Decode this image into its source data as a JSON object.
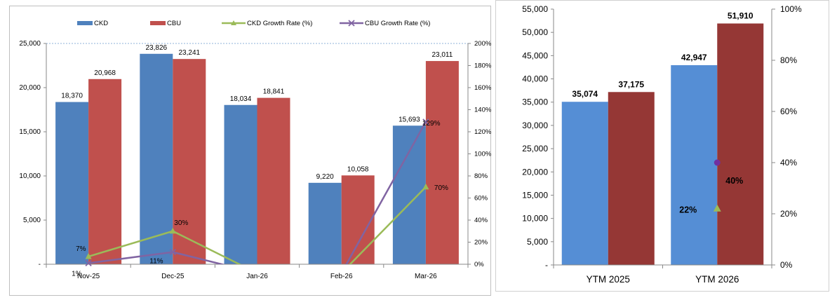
{
  "chart_data": [
    {
      "type": "bar",
      "title": "",
      "categories": [
        "Nov-25",
        "Dec-25",
        "Jan-26",
        "Feb-26",
        "Mar-26"
      ],
      "series": [
        {
          "name": "CKD",
          "type": "bar",
          "values": [
            18370,
            23826,
            18034,
            9220,
            15693
          ],
          "labels": [
            "18,370",
            "23,826",
            "18,034",
            "9,220",
            "15,693"
          ],
          "color": "#4f81bd"
        },
        {
          "name": "CBU",
          "type": "bar",
          "values": [
            20968,
            23241,
            18841,
            10058,
            23011
          ],
          "labels": [
            "20,968",
            "23,241",
            "18,841",
            "10,058",
            "23,011"
          ],
          "color": "#c0504d"
        },
        {
          "name": "CKD Growth Rate (%)",
          "type": "line",
          "axis": "right",
          "values": [
            7,
            30,
            -8,
            -8,
            70
          ],
          "labels": [
            "7%",
            "30%",
            "",
            "",
            "70%"
          ],
          "color": "#9bbb59"
        },
        {
          "name": "CBU Growth Rate (%)",
          "type": "line",
          "axis": "right",
          "values": [
            1,
            11,
            -8,
            -8,
            129
          ],
          "labels": [
            "1%",
            "11%",
            "",
            "",
            "129%"
          ],
          "color": "#8064a2"
        }
      ],
      "ylim": [
        0,
        25000
      ],
      "y_ticks": [
        "-",
        "5,000",
        "10,000",
        "15,000",
        "20,000",
        "25,000"
      ],
      "y2lim": [
        0,
        200
      ],
      "y2_ticks": [
        "0%",
        "20%",
        "40%",
        "60%",
        "80%",
        "100%",
        "120%",
        "140%",
        "160%",
        "180%",
        "200%"
      ],
      "legend": "top"
    },
    {
      "type": "bar",
      "title": "",
      "categories": [
        "YTM 2025",
        "YTM 2026"
      ],
      "series": [
        {
          "name": "CKD",
          "type": "bar",
          "values": [
            35074,
            42947
          ],
          "labels": [
            "35,074",
            "42,947"
          ],
          "color": "#558ed5"
        },
        {
          "name": "CBU",
          "type": "bar",
          "values": [
            37175,
            51910
          ],
          "labels": [
            "37,175",
            "51,910"
          ],
          "color": "#953735"
        },
        {
          "name": "CKD Growth Rate (%)",
          "type": "scatter",
          "axis": "right",
          "values": [
            null,
            22
          ],
          "labels": [
            "",
            "22%"
          ],
          "color": "#9bbb59"
        },
        {
          "name": "CBU Growth Rate (%)",
          "type": "scatter",
          "axis": "right",
          "values": [
            null,
            40
          ],
          "labels": [
            "",
            "40%"
          ],
          "color": "#7030a0"
        }
      ],
      "ylim": [
        0,
        55000
      ],
      "y_ticks": [
        "-",
        "5,000",
        "10,000",
        "15,000",
        "20,000",
        "25,000",
        "30,000",
        "35,000",
        "40,000",
        "45,000",
        "50,000",
        "55,000"
      ],
      "y2lim": [
        0,
        100
      ],
      "y2_ticks": [
        "0%",
        "20%",
        "40%",
        "60%",
        "80%",
        "100%"
      ]
    }
  ]
}
